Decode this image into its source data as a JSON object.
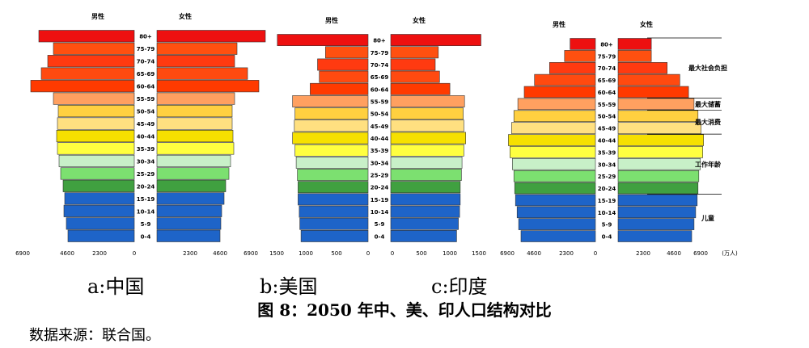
{
  "figure": {
    "caption": "图 8：2050 年中、美、印人口结构对比",
    "source": "数据来源：联合国。"
  },
  "colors": [
    "#1e64c8",
    "#1e64c8",
    "#1e64c8",
    "#1e64c8",
    "#40a040",
    "#7ce070",
    "#c8f0c8",
    "#ffff40",
    "#f6e000",
    "#ffe080",
    "#ffd040",
    "#ffa060",
    "#ff3a00",
    "#ff4a10",
    "#ff3a10",
    "#ff5010",
    "#ee1010"
  ],
  "chart_data": [
    {
      "type": "bar",
      "label": "a:中国",
      "categories": [
        "0-4",
        "5-9",
        "10-14",
        "15-19",
        "20-24",
        "25-29",
        "30-34",
        "35-39",
        "40-44",
        "45-49",
        "50-54",
        "55-59",
        "60-64",
        "65-69",
        "70-74",
        "75-79",
        "80+"
      ],
      "male_label": "男性",
      "female_label": "女性",
      "male": [
        4100,
        4200,
        4350,
        4300,
        4400,
        4550,
        4650,
        4750,
        4800,
        4750,
        4700,
        5000,
        6400,
        5750,
        5350,
        5000,
        5900
      ],
      "female": [
        3900,
        3950,
        4000,
        4150,
        4250,
        4450,
        4550,
        4750,
        4700,
        4650,
        4650,
        4800,
        6300,
        5600,
        4800,
        4950,
        6700
      ],
      "xticks": [
        "6900",
        "4600",
        "2300",
        "0",
        "2300",
        "4600",
        "6900"
      ],
      "xlim": [
        0,
        6900
      ]
    },
    {
      "type": "bar",
      "label": "b:美国",
      "categories": [
        "0-4",
        "5-9",
        "10-14",
        "15-19",
        "20-24",
        "25-29",
        "30-34",
        "35-39",
        "40-44",
        "45-49",
        "50-54",
        "55-59",
        "60-64",
        "65-69",
        "70-74",
        "75-79",
        "80+"
      ],
      "male_label": "男性",
      "female_label": "女性",
      "male": [
        1100,
        1120,
        1130,
        1150,
        1150,
        1160,
        1180,
        1200,
        1240,
        1210,
        1200,
        1240,
        950,
        800,
        830,
        700,
        1490
      ],
      "female": [
        1080,
        1110,
        1130,
        1140,
        1140,
        1160,
        1170,
        1200,
        1230,
        1200,
        1190,
        1210,
        970,
        800,
        730,
        780,
        1480
      ],
      "xticks": [
        "1500",
        "1000",
        "500",
        "0",
        "0",
        "500",
        "1000",
        "1500"
      ],
      "xlim": [
        0,
        1500
      ]
    },
    {
      "type": "bar",
      "label": "c:印度",
      "categories": [
        "0-4",
        "5-9",
        "10-14",
        "15-19",
        "20-24",
        "25-29",
        "30-34",
        "35-39",
        "40-44",
        "45-49",
        "50-54",
        "55-59",
        "60-64",
        "65-69",
        "70-74",
        "75-79",
        "80+"
      ],
      "male_label": "男性",
      "female_label": "女性",
      "male": [
        4700,
        4850,
        4950,
        5050,
        5100,
        5150,
        5250,
        5400,
        5500,
        5300,
        5150,
        4900,
        4500,
        3850,
        2900,
        1950,
        1600
      ],
      "female": [
        4650,
        4800,
        4900,
        5000,
        5050,
        5100,
        5200,
        5350,
        5400,
        5250,
        5050,
        4800,
        4450,
        3900,
        3100,
        2100,
        2100
      ],
      "xticks": [
        "6900",
        "4600",
        "2300",
        "0",
        "2300",
        "4600",
        "6900"
      ],
      "unit": "(万人)",
      "xlim": [
        0,
        6900
      ],
      "annotations": [
        {
          "text": "最大社会负担",
          "from": "60-64",
          "to": "80+"
        },
        {
          "text": "最大储蓄",
          "from": "55-59",
          "to": "55-59"
        },
        {
          "text": "最大消费",
          "from": "45-49",
          "to": "50-54"
        },
        {
          "text": "工作年龄",
          "from": "20-24",
          "to": "40-44"
        },
        {
          "text": "儿童",
          "from": "0-4",
          "to": "15-19"
        }
      ]
    }
  ]
}
